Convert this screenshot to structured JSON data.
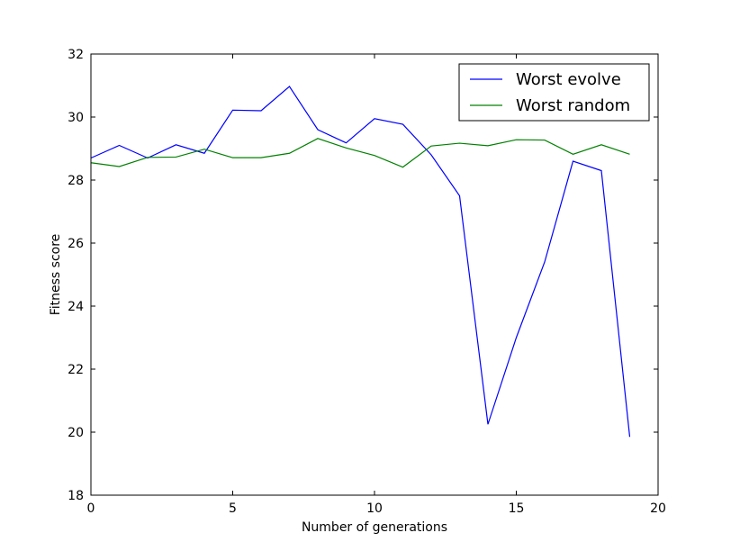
{
  "chart_data": {
    "type": "line",
    "title": "",
    "xlabel": "Number of generations",
    "ylabel": "Fitness score",
    "xlim": [
      0,
      20
    ],
    "ylim": [
      18,
      32
    ],
    "xticks": [
      0,
      5,
      10,
      15,
      20
    ],
    "yticks": [
      18,
      20,
      22,
      24,
      26,
      28,
      30,
      32
    ],
    "grid": false,
    "legend_position": "top-right",
    "x": [
      0,
      1,
      2,
      3,
      4,
      5,
      6,
      7,
      8,
      9,
      10,
      11,
      12,
      13,
      14,
      15,
      16,
      17,
      18,
      19
    ],
    "series": [
      {
        "name": "Worst evolve",
        "color": "#0000ff",
        "values": [
          28.7,
          29.1,
          28.7,
          29.12,
          28.85,
          30.22,
          30.2,
          30.97,
          29.6,
          29.18,
          29.95,
          29.77,
          28.8,
          27.5,
          20.25,
          23.0,
          25.4,
          28.6,
          28.3,
          19.85
        ]
      },
      {
        "name": "Worst random",
        "color": "#008000",
        "values": [
          28.55,
          28.43,
          28.72,
          28.73,
          28.98,
          28.71,
          28.71,
          28.85,
          29.32,
          29.02,
          28.78,
          28.41,
          29.08,
          29.17,
          29.09,
          29.28,
          29.27,
          28.82,
          29.12,
          28.82
        ]
      }
    ]
  }
}
